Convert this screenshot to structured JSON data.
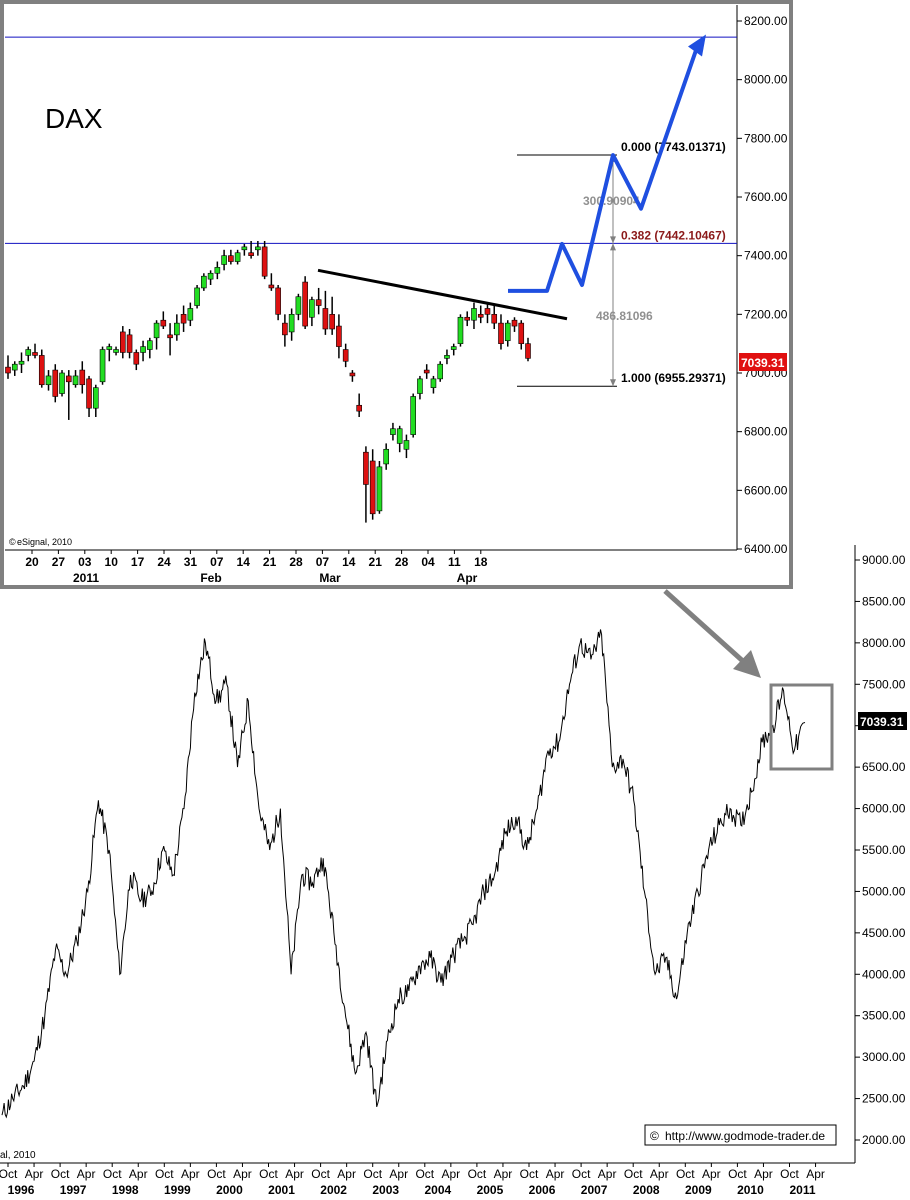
{
  "chart_data": [
    {
      "type": "line",
      "title": "",
      "y_ticks": [
        "2000.00",
        "2500.00",
        "3000.00",
        "3500.00",
        "4000.00",
        "4500.00",
        "5000.00",
        "5500.00",
        "6000.00",
        "6500.00",
        "7000.00",
        "7500.00",
        "8000.00",
        "8500.00",
        "9000.00"
      ],
      "ylim": [
        1800,
        9100
      ],
      "x_tick_months": [
        "Oct",
        "Apr",
        "Oct",
        "Apr",
        "Oct",
        "Apr",
        "Oct",
        "Apr",
        "Oct",
        "Apr",
        "Oct",
        "Apr",
        "Oct",
        "Apr",
        "Oct",
        "Apr",
        "Oct",
        "Apr",
        "Oct",
        "Apr",
        "Oct",
        "Apr",
        "Oct",
        "Apr",
        "Oct",
        "Apr",
        "Oct",
        "Apr",
        "Oct",
        "Apr",
        "Oct",
        "Apr"
      ],
      "x_tick_years": [
        "1996",
        "1997",
        "1998",
        "1999",
        "2000",
        "2001",
        "2002",
        "2003",
        "2004",
        "2005",
        "2006",
        "2007",
        "2008",
        "2009",
        "2010",
        "2011"
      ],
      "last_value": "7039.31",
      "copyright": "al, 2010",
      "source": "http://www.godmode-trader.de",
      "series": [
        {
          "values": [
            2300,
            2500,
            2650,
            2950,
            3500,
            4300,
            4000,
            4400,
            5000,
            6100,
            5500,
            4000,
            5200,
            4900,
            5000,
            5500,
            5200,
            6000,
            7400,
            8000,
            7300,
            7500,
            6500,
            7300,
            6000,
            5500,
            6000,
            4000,
            5200,
            5100,
            5400,
            4500,
            3600,
            2800,
            3300,
            2400,
            3200,
            3700,
            3800,
            4100,
            4200,
            3900,
            4200,
            4400,
            4600,
            5000,
            5200,
            5700,
            5900,
            5500,
            6000,
            6700,
            6800,
            7500,
            8000,
            7800,
            8100,
            6500,
            6600,
            6100,
            5000,
            4000,
            4200,
            3700,
            4500,
            5000,
            5500,
            5800,
            6000,
            5800,
            6200,
            6800,
            7000,
            7420,
            6700,
            7039
          ]
        }
      ]
    },
    {
      "type": "candlestick",
      "title": "DAX",
      "y_ticks": [
        "6400.00",
        "6600.00",
        "6800.00",
        "7000.00",
        "7200.00",
        "7400.00",
        "7600.00",
        "7800.00",
        "8000.00",
        "8200.00"
      ],
      "ylim": [
        6400,
        8250
      ],
      "x_labels": [
        "20",
        "27",
        "03",
        "10",
        "17",
        "24",
        "31",
        "07",
        "14",
        "21",
        "28",
        "07",
        "14",
        "21",
        "28",
        "04",
        "11",
        "18"
      ],
      "x_month_labels": [
        "2011",
        "Feb",
        "Mar",
        "Apr"
      ],
      "last_value": "7039.31",
      "copyright": "eSignal, 2010",
      "candles": [
        [
          7020,
          7060,
          6980,
          7000
        ],
        [
          7010,
          7040,
          6990,
          7030
        ],
        [
          7030,
          7070,
          7000,
          7040
        ],
        [
          7060,
          7090,
          7040,
          7080
        ],
        [
          7070,
          7100,
          7050,
          7060
        ],
        [
          7060,
          7080,
          6950,
          6960
        ],
        [
          6960,
          7010,
          6940,
          6990
        ],
        [
          7010,
          7030,
          6900,
          6920
        ],
        [
          6930,
          7010,
          6920,
          7000
        ],
        [
          6990,
          7010,
          6840,
          6970
        ],
        [
          6960,
          7010,
          6950,
          6990
        ],
        [
          7010,
          7040,
          6930,
          6960
        ],
        [
          6980,
          6990,
          6850,
          6880
        ],
        [
          6880,
          6960,
          6850,
          6950
        ],
        [
          6970,
          7090,
          6960,
          7080
        ],
        [
          7080,
          7100,
          7040,
          7090
        ],
        [
          7070,
          7090,
          7060,
          7080
        ],
        [
          7140,
          7160,
          7050,
          7070
        ],
        [
          7130,
          7150,
          7050,
          7070
        ],
        [
          7070,
          7080,
          7010,
          7030
        ],
        [
          7070,
          7110,
          7040,
          7090
        ],
        [
          7080,
          7120,
          7050,
          7110
        ],
        [
          7120,
          7180,
          7080,
          7170
        ],
        [
          7180,
          7210,
          7150,
          7160
        ],
        [
          7130,
          7170,
          7060,
          7120
        ],
        [
          7130,
          7200,
          7110,
          7170
        ],
        [
          7200,
          7230,
          7140,
          7170
        ],
        [
          7180,
          7240,
          7160,
          7220
        ],
        [
          7230,
          7300,
          7220,
          7290
        ],
        [
          7290,
          7340,
          7280,
          7330
        ],
        [
          7320,
          7350,
          7300,
          7340
        ],
        [
          7340,
          7380,
          7320,
          7360
        ],
        [
          7370,
          7420,
          7350,
          7400
        ],
        [
          7400,
          7420,
          7370,
          7380
        ],
        [
          7380,
          7420,
          7370,
          7410
        ],
        [
          7420,
          7440,
          7400,
          7430
        ],
        [
          7410,
          7450,
          7390,
          7400
        ],
        [
          7420,
          7450,
          7400,
          7430
        ],
        [
          7430,
          7450,
          7320,
          7330
        ],
        [
          7300,
          7340,
          7280,
          7290
        ],
        [
          7290,
          7300,
          7180,
          7200
        ],
        [
          7170,
          7200,
          7090,
          7130
        ],
        [
          7140,
          7220,
          7110,
          7200
        ],
        [
          7200,
          7270,
          7180,
          7260
        ],
        [
          7310,
          7330,
          7150,
          7160
        ],
        [
          7190,
          7260,
          7160,
          7250
        ],
        [
          7250,
          7290,
          7200,
          7230
        ],
        [
          7220,
          7280,
          7130,
          7150
        ],
        [
          7200,
          7260,
          7130,
          7150
        ],
        [
          7160,
          7200,
          7050,
          7090
        ],
        [
          7080,
          7100,
          7020,
          7040
        ],
        [
          7000,
          7010,
          6970,
          6990
        ],
        [
          6890,
          6930,
          6850,
          6870
        ],
        [
          6730,
          6750,
          6490,
          6620
        ],
        [
          6700,
          6740,
          6500,
          6520
        ],
        [
          6530,
          6700,
          6520,
          6680
        ],
        [
          6690,
          6760,
          6670,
          6740
        ],
        [
          6790,
          6830,
          6770,
          6810
        ],
        [
          6760,
          6820,
          6730,
          6810
        ],
        [
          6740,
          6790,
          6710,
          6770
        ],
        [
          6790,
          6930,
          6780,
          6920
        ],
        [
          6930,
          6990,
          6910,
          6980
        ],
        [
          7010,
          7030,
          6980,
          7000
        ],
        [
          6950,
          6990,
          6930,
          6980
        ],
        [
          6980,
          7040,
          6970,
          7030
        ],
        [
          7050,
          7080,
          7030,
          7060
        ],
        [
          7080,
          7100,
          7060,
          7090
        ],
        [
          7100,
          7200,
          7090,
          7190
        ],
        [
          7190,
          7210,
          7160,
          7180
        ],
        [
          7180,
          7240,
          7150,
          7220
        ],
        [
          7200,
          7230,
          7170,
          7190
        ],
        [
          7220,
          7240,
          7170,
          7200
        ],
        [
          7200,
          7230,
          7150,
          7170
        ],
        [
          7170,
          7200,
          7080,
          7100
        ],
        [
          7110,
          7180,
          7090,
          7170
        ],
        [
          7180,
          7190,
          7140,
          7160
        ],
        [
          7170,
          7180,
          7080,
          7100
        ],
        [
          7100,
          7120,
          7040,
          7050
        ]
      ],
      "trendline": {
        "from": 7350,
        "to": 7185
      },
      "forecast": [
        7280,
        7280,
        7440,
        7300,
        7743,
        7560,
        8120
      ],
      "h_lines": [
        8145,
        7442
      ],
      "fib": {
        "level_0": "0.000 (7743.01371)",
        "level_382": "0.382 (7442.10467)",
        "level_100": "1.000 (6955.29371)",
        "range_upper": "300.90904",
        "range_full": "486.81096",
        "values": {
          "l0": 7743,
          "l382": 7442,
          "l100": 6955
        }
      }
    }
  ],
  "connector": {
    "color": "#808080"
  }
}
